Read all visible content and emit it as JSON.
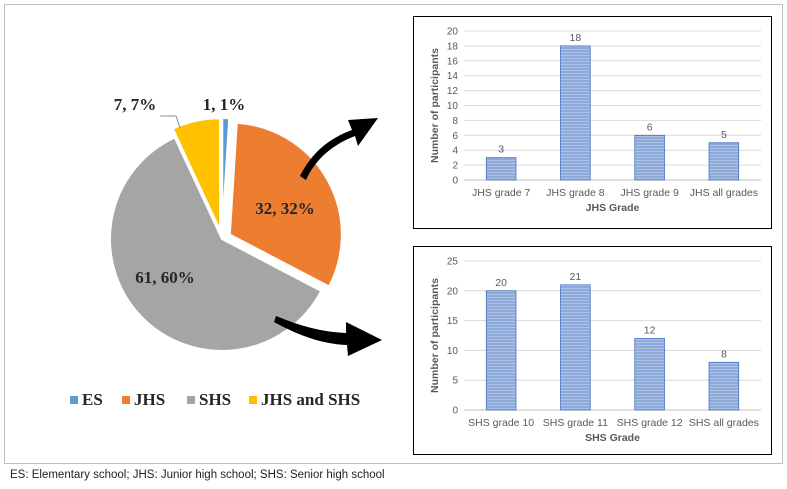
{
  "footnote": "ES: Elementary school; JHS: Junior high school; SHS: Senior high school",
  "colors": {
    "es": "#5b9bd5",
    "jhs": "#ed7d31",
    "shs": "#a5a5a5",
    "jhs_and_shs": "#ffc000",
    "bar_fill": "#8eaadb",
    "bar_stroke": "#4472c4",
    "grid": "#d9d9d9",
    "axis_text": "#595959"
  },
  "chart_data": [
    {
      "type": "pie",
      "title": "",
      "slices": [
        {
          "key": "es",
          "name": "ES",
          "value": 1,
          "percent": 1,
          "label": "1, 1%",
          "exploded": true
        },
        {
          "key": "jhs",
          "name": "JHS",
          "value": 32,
          "percent": 32,
          "label": "32, 32%",
          "exploded": true
        },
        {
          "key": "shs",
          "name": "SHS",
          "value": 61,
          "percent": 60,
          "label": "61, 60%",
          "exploded": false
        },
        {
          "key": "jhs_and_shs",
          "name": "JHS and SHS",
          "value": 7,
          "percent": 7,
          "label": "7, 7%",
          "exploded": true
        }
      ],
      "legend": {
        "placement": "bottom",
        "items": [
          "ES",
          "JHS",
          "SHS",
          "JHS and SHS"
        ]
      }
    },
    {
      "type": "bar",
      "title": "",
      "categories": [
        "JHS grade 7",
        "JHS grade 8",
        "JHS grade 9",
        "JHS all grades"
      ],
      "values": [
        3,
        18,
        6,
        5
      ],
      "data_labels": [
        "3",
        "18",
        "6",
        "5"
      ],
      "xlabel": "JHS Grade",
      "ylabel": "Number of participants",
      "ylim": [
        0,
        20
      ],
      "yticks": [
        0,
        2,
        4,
        6,
        8,
        10,
        12,
        14,
        16,
        18,
        20
      ],
      "ytick_labels": [
        "0",
        "2",
        "4",
        "6",
        "8",
        "10",
        "12",
        "14",
        "16",
        "18",
        "20"
      ],
      "grid": true
    },
    {
      "type": "bar",
      "title": "",
      "categories": [
        "SHS grade 10",
        "SHS grade 11",
        "SHS grade 12",
        "SHS all grades"
      ],
      "values": [
        20,
        21,
        12,
        8
      ],
      "data_labels": [
        "20",
        "21",
        "12",
        "8"
      ],
      "xlabel": "SHS Grade",
      "ylabel": "Number of participants",
      "ylim": [
        0,
        25
      ],
      "yticks": [
        0,
        5,
        10,
        15,
        20,
        25
      ],
      "ytick_labels": [
        "0",
        "5",
        "10",
        "15",
        "20",
        "25"
      ],
      "grid": true
    }
  ]
}
